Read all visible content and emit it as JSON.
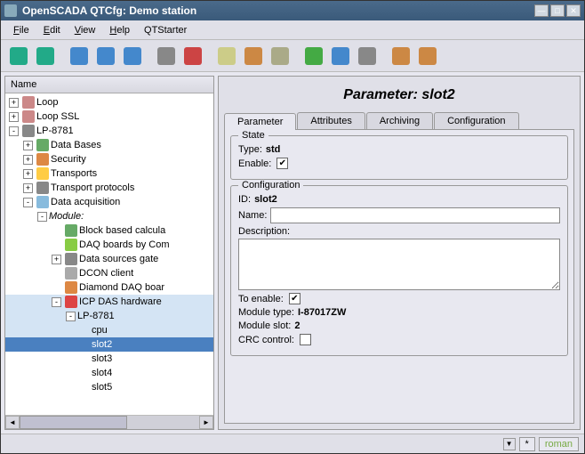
{
  "window": {
    "title": "OpenSCADA QTCfg: Demo station"
  },
  "menu": {
    "file": "File",
    "edit": "Edit",
    "view": "View",
    "help": "Help",
    "qtstarter": "QTStarter"
  },
  "toolbar_icons": [
    "db-up",
    "db-down",
    "nav-up",
    "nav-back",
    "nav-fwd",
    "item-add",
    "item-del",
    "copy",
    "cut",
    "paste",
    "refresh",
    "run",
    "stop",
    "user",
    "users"
  ],
  "tree": {
    "header": "Name",
    "nodes": [
      {
        "depth": 0,
        "exp": "+",
        "icon": "#c88",
        "label": "Loop"
      },
      {
        "depth": 0,
        "exp": "+",
        "icon": "#c88",
        "label": "Loop SSL"
      },
      {
        "depth": 0,
        "exp": "-",
        "icon": "#888",
        "label": "LP-8781"
      },
      {
        "depth": 1,
        "exp": "+",
        "icon": "#6a6",
        "label": "Data Bases"
      },
      {
        "depth": 1,
        "exp": "+",
        "icon": "#d84",
        "label": "Security"
      },
      {
        "depth": 1,
        "exp": "+",
        "icon": "#fc4",
        "label": "Transports"
      },
      {
        "depth": 1,
        "exp": "+",
        "icon": "#888",
        "label": "Transport protocols"
      },
      {
        "depth": 1,
        "exp": "-",
        "icon": "#8bd",
        "label": "Data acquisition"
      },
      {
        "depth": 2,
        "exp": "-",
        "icon": "",
        "label": "Module:",
        "italic": true
      },
      {
        "depth": 3,
        "exp": "",
        "icon": "#6a6",
        "label": "Block based calcula"
      },
      {
        "depth": 3,
        "exp": "",
        "icon": "#8c4",
        "label": "DAQ boards by Com"
      },
      {
        "depth": 3,
        "exp": "+",
        "icon": "#888",
        "label": "Data sources gate"
      },
      {
        "depth": 3,
        "exp": "",
        "icon": "#aaa",
        "label": "DCON client"
      },
      {
        "depth": 3,
        "exp": "",
        "icon": "#d84",
        "label": "Diamond DAQ boar"
      },
      {
        "depth": 3,
        "exp": "-",
        "icon": "#d44",
        "label": "ICP DAS hardware",
        "selected": true
      },
      {
        "depth": 4,
        "exp": "-",
        "icon": "",
        "label": "LP-8781",
        "selected": true
      },
      {
        "depth": 5,
        "exp": "",
        "icon": "",
        "label": "cpu",
        "selected": true
      },
      {
        "depth": 5,
        "exp": "",
        "icon": "",
        "label": "slot2",
        "current": true
      },
      {
        "depth": 5,
        "exp": "",
        "icon": "",
        "label": "slot3"
      },
      {
        "depth": 5,
        "exp": "",
        "icon": "",
        "label": "slot4"
      },
      {
        "depth": 5,
        "exp": "",
        "icon": "",
        "label": "slot5"
      }
    ]
  },
  "param": {
    "title": "Parameter: slot2",
    "tabs": [
      "Parameter",
      "Attributes",
      "Archiving",
      "Configuration"
    ],
    "active_tab": 0,
    "state": {
      "legend": "State",
      "type_label": "Type:",
      "type_value": "std",
      "enable_label": "Enable:",
      "enable_checked": true
    },
    "config": {
      "legend": "Configuration",
      "id_label": "ID:",
      "id_value": "slot2",
      "name_label": "Name:",
      "name_value": "",
      "desc_label": "Description:",
      "desc_value": "",
      "toenable_label": "To enable:",
      "toenable_checked": true,
      "modtype_label": "Module type:",
      "modtype_value": "I-87017ZW",
      "modslot_label": "Module slot:",
      "modslot_value": "2",
      "crc_label": "CRC control:",
      "crc_checked": false
    }
  },
  "status": {
    "user": "roman",
    "star": "*"
  }
}
